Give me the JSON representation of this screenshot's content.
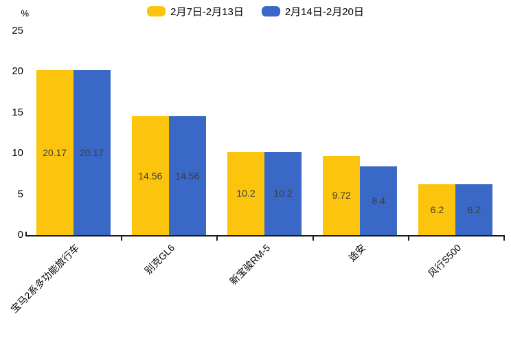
{
  "chart_data": {
    "type": "bar",
    "title": "",
    "unit_label": "%",
    "categories": [
      "宝马2系多功能旅行车",
      "别克GL6",
      "新宝骏RM-5",
      "途安",
      "风行S500"
    ],
    "series": [
      {
        "name": "2月7日-2月13日",
        "color": "#FCC40D",
        "values": [
          20.17,
          14.56,
          10.2,
          9.72,
          6.2
        ]
      },
      {
        "name": "2月14日-2月20日",
        "color": "#3A68C7",
        "values": [
          20.17,
          14.56,
          10.2,
          8.4,
          6.2
        ]
      }
    ],
    "value_labels": [
      "20.17",
      "14.56",
      "10.2",
      "9.72",
      "6.2",
      "20.17",
      "14.56",
      "10.2",
      "8.4",
      "6.2"
    ],
    "ylim": [
      0,
      25
    ],
    "yticks": [
      0,
      5,
      10,
      15,
      20,
      25
    ],
    "legend_position": "top-center",
    "grid": false,
    "value_label_position": "inside-middle",
    "xlabel": "",
    "ylabel": ""
  }
}
